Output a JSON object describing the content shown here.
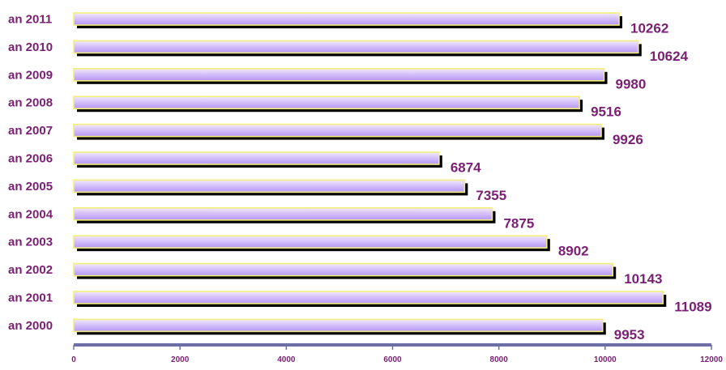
{
  "chart_data": {
    "type": "bar",
    "orientation": "horizontal",
    "categories": [
      "an 2011",
      "an 2010",
      "an 2009",
      "an 2008",
      "an 2007",
      "an 2006",
      "an 2005",
      "an 2004",
      "an 2003",
      "an 2002",
      "an 2001",
      "an 2000"
    ],
    "values": [
      10262,
      10624,
      9980,
      9516,
      9926,
      6874,
      7355,
      7875,
      8902,
      10143,
      11089,
      9953
    ],
    "xlim": [
      0,
      12000
    ],
    "xticks": [
      "0",
      "2000",
      "4000",
      "6000",
      "8000",
      "10000",
      "12000"
    ],
    "title": "",
    "xlabel": "",
    "ylabel": "",
    "grid": false,
    "legend": "none",
    "colors": {
      "bar_top": "#f3eaff",
      "bar_bottom": "#b697f2",
      "bar_border": "#f2ee7a",
      "shadow": "#000000",
      "text": "#7a1f73",
      "axis": "#6e6ea6"
    }
  }
}
